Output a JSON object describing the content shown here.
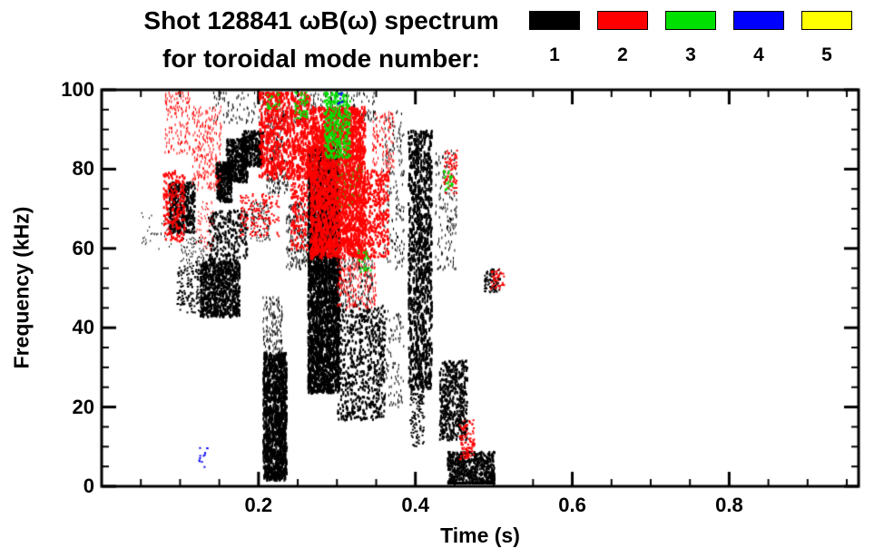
{
  "title": {
    "line1": "Shot 128841 ωB(ω) spectrum",
    "line2": "for toroidal mode number:"
  },
  "legend": {
    "items": [
      {
        "label": "1",
        "color": "#000000"
      },
      {
        "label": "2",
        "color": "#ff0000"
      },
      {
        "label": "3",
        "color": "#00e000"
      },
      {
        "label": "4",
        "color": "#0000ff"
      },
      {
        "label": "5",
        "color": "#ffff00"
      }
    ]
  },
  "chart_data": {
    "type": "scatter",
    "title": "Shot 128841 ωB(ω) spectrum for toroidal mode number: 1 2 3 4 5",
    "xlabel": "Time (s)",
    "ylabel": "Frequency (kHz)",
    "xlim": [
      0,
      0.965
    ],
    "ylim": [
      0,
      100
    ],
    "x_major_ticks": [
      0.2,
      0.4,
      0.6,
      0.8
    ],
    "x_tick_labels": [
      "0.2",
      "0.4",
      "0.6",
      "0.8"
    ],
    "x_minor_step": 0.05,
    "y_major_ticks": [
      0,
      20,
      40,
      60,
      80,
      100
    ],
    "y_tick_labels": [
      "0",
      "20",
      "40",
      "60",
      "80",
      "100"
    ],
    "y_minor_step": 5,
    "grid": false,
    "legend_position": "top-right",
    "series": [
      {
        "name": "n=1",
        "color": "#000000",
        "clusters": [
          {
            "t": [
              0.05,
              0.09
            ],
            "f": [
              60,
              70
            ],
            "n": 35,
            "w": 1,
            "h": 2
          },
          {
            "t": [
              0.085,
              0.118
            ],
            "f": [
              64,
              77
            ],
            "n": 450,
            "w": 2,
            "h": 3
          },
          {
            "t": [
              0.095,
              0.13
            ],
            "f": [
              44,
              56
            ],
            "n": 160,
            "w": 2,
            "h": 2
          },
          {
            "t": [
              0.1,
              0.135
            ],
            "f": [
              56,
              63
            ],
            "n": 90,
            "w": 1,
            "h": 2
          },
          {
            "t": [
              0.125,
              0.175
            ],
            "f": [
              43,
              57
            ],
            "n": 850,
            "w": 2,
            "h": 3
          },
          {
            "t": [
              0.135,
              0.185
            ],
            "f": [
              57,
              70
            ],
            "n": 260,
            "w": 2,
            "h": 3
          },
          {
            "t": [
              0.145,
              0.165
            ],
            "f": [
              72,
              82
            ],
            "n": 320,
            "w": 2,
            "h": 3
          },
          {
            "t": [
              0.158,
              0.185
            ],
            "f": [
              77,
              88
            ],
            "n": 430,
            "w": 2,
            "h": 3
          },
          {
            "t": [
              0.178,
              0.205
            ],
            "f": [
              81,
              90
            ],
            "n": 330,
            "w": 2,
            "h": 3
          },
          {
            "t": [
              0.14,
              0.35
            ],
            "f": [
              92,
              100
            ],
            "n": 240,
            "w": 1,
            "h": 3
          },
          {
            "t": [
              0.19,
              0.215
            ],
            "f": [
              62,
              72
            ],
            "n": 120,
            "w": 1,
            "h": 2
          },
          {
            "t": [
              0.205,
              0.235
            ],
            "f": [
              2,
              34
            ],
            "n": 1200,
            "w": 2,
            "h": 4
          },
          {
            "t": [
              0.205,
              0.23
            ],
            "f": [
              34,
              48
            ],
            "n": 140,
            "w": 1,
            "h": 3
          },
          {
            "t": [
              0.21,
              0.237
            ],
            "f": [
              74,
              95
            ],
            "n": 220,
            "w": 1,
            "h": 3
          },
          {
            "t": [
              0.235,
              0.265
            ],
            "f": [
              55,
              72
            ],
            "n": 200,
            "w": 1,
            "h": 3
          },
          {
            "t": [
              0.262,
              0.302
            ],
            "f": [
              24,
              86
            ],
            "n": 3000,
            "w": 2,
            "h": 4
          },
          {
            "t": [
              0.3,
              0.36
            ],
            "f": [
              17,
              46
            ],
            "n": 650,
            "w": 2,
            "h": 3
          },
          {
            "t": [
              0.3,
              0.345
            ],
            "f": [
              46,
              58
            ],
            "n": 180,
            "w": 1,
            "h": 3
          },
          {
            "t": [
              0.35,
              0.385
            ],
            "f": [
              20,
              45
            ],
            "n": 140,
            "w": 1,
            "h": 3
          },
          {
            "t": [
              0.358,
              0.385
            ],
            "f": [
              55,
              95
            ],
            "n": 170,
            "w": 1,
            "h": 3
          },
          {
            "t": [
              0.39,
              0.42
            ],
            "f": [
              25,
              90
            ],
            "n": 1050,
            "w": 2,
            "h": 4
          },
          {
            "t": [
              0.392,
              0.41
            ],
            "f": [
              10,
              25
            ],
            "n": 110,
            "w": 2,
            "h": 2
          },
          {
            "t": [
              0.425,
              0.452
            ],
            "f": [
              55,
              85
            ],
            "n": 150,
            "w": 1,
            "h": 3
          },
          {
            "t": [
              0.43,
              0.465
            ],
            "f": [
              12,
              32
            ],
            "n": 480,
            "w": 2,
            "h": 3
          },
          {
            "t": [
              0.44,
              0.5
            ],
            "f": [
              0,
              9
            ],
            "n": 620,
            "w": 2,
            "h": 3
          },
          {
            "t": [
              0.487,
              0.507
            ],
            "f": [
              49,
              55
            ],
            "n": 90,
            "w": 2,
            "h": 2
          }
        ]
      },
      {
        "name": "n=2",
        "color": "#ff0000",
        "clusters": [
          {
            "t": [
              0.078,
              0.105
            ],
            "f": [
              62,
              80
            ],
            "n": 190,
            "w": 2,
            "h": 3
          },
          {
            "t": [
              0.08,
              0.112
            ],
            "f": [
              84,
              100
            ],
            "n": 140,
            "w": 1,
            "h": 3
          },
          {
            "t": [
              0.115,
              0.152
            ],
            "f": [
              75,
              96
            ],
            "n": 240,
            "w": 1,
            "h": 3
          },
          {
            "t": [
              0.12,
              0.142
            ],
            "f": [
              60,
              72
            ],
            "n": 60,
            "w": 1,
            "h": 2
          },
          {
            "t": [
              0.175,
              0.225
            ],
            "f": [
              63,
              74
            ],
            "n": 150,
            "w": 2,
            "h": 2
          },
          {
            "t": [
              0.2,
              0.265
            ],
            "f": [
              78,
              100
            ],
            "n": 750,
            "w": 2,
            "h": 4
          },
          {
            "t": [
              0.24,
              0.262
            ],
            "f": [
              60,
              78
            ],
            "n": 140,
            "w": 2,
            "h": 3
          },
          {
            "t": [
              0.265,
              0.335
            ],
            "f": [
              58,
              96
            ],
            "n": 2400,
            "w": 2,
            "h": 4
          },
          {
            "t": [
              0.3,
              0.35
            ],
            "f": [
              45,
              58
            ],
            "n": 220,
            "w": 1,
            "h": 3
          },
          {
            "t": [
              0.335,
              0.365
            ],
            "f": [
              58,
              80
            ],
            "n": 330,
            "w": 2,
            "h": 3
          },
          {
            "t": [
              0.345,
              0.372
            ],
            "f": [
              80,
              95
            ],
            "n": 120,
            "w": 1,
            "h": 3
          },
          {
            "t": [
              0.435,
              0.452
            ],
            "f": [
              74,
              85
            ],
            "n": 80,
            "w": 2,
            "h": 2
          },
          {
            "t": [
              0.455,
              0.475
            ],
            "f": [
              7,
              17
            ],
            "n": 100,
            "w": 2,
            "h": 2
          },
          {
            "t": [
              0.495,
              0.512
            ],
            "f": [
              50,
              55
            ],
            "n": 40,
            "w": 2,
            "h": 2
          }
        ]
      },
      {
        "name": "n=3",
        "color": "#00e000",
        "clusters": [
          {
            "t": [
              0.283,
              0.316
            ],
            "f": [
              83,
              100
            ],
            "n": 330,
            "w": 2,
            "h": 3
          },
          {
            "t": [
              0.245,
              0.262
            ],
            "f": [
              93,
              100
            ],
            "n": 55,
            "w": 2,
            "h": 2
          },
          {
            "t": [
              0.3,
              0.332
            ],
            "f": [
              70,
              82
            ],
            "n": 40,
            "w": 1,
            "h": 2
          },
          {
            "t": [
              0.325,
              0.342
            ],
            "f": [
              54,
              60
            ],
            "n": 25,
            "w": 2,
            "h": 2
          },
          {
            "t": [
              0.435,
              0.447
            ],
            "f": [
              75,
              80
            ],
            "n": 25,
            "w": 2,
            "h": 2
          },
          {
            "t": [
              0.21,
              0.226
            ],
            "f": [
              95,
              100
            ],
            "n": 25,
            "w": 2,
            "h": 2
          }
        ]
      },
      {
        "name": "n=4",
        "color": "#0000ff",
        "clusters": [
          {
            "t": [
              0.122,
              0.134
            ],
            "f": [
              5,
              10
            ],
            "n": 12,
            "w": 2,
            "h": 2
          },
          {
            "t": [
              0.296,
              0.306
            ],
            "f": [
              96,
              100
            ],
            "n": 10,
            "w": 2,
            "h": 2
          }
        ]
      },
      {
        "name": "n=5",
        "color": "#ffff00",
        "clusters": []
      }
    ]
  }
}
